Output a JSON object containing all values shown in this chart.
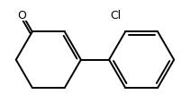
{
  "background": "#ffffff",
  "line_color": "#000000",
  "line_width": 1.4,
  "text_color": "#000000",
  "font_size": 9.0,
  "O_label": "O",
  "Cl_label": "Cl",
  "fig_width": 2.11,
  "fig_height": 1.16,
  "dpi": 100
}
